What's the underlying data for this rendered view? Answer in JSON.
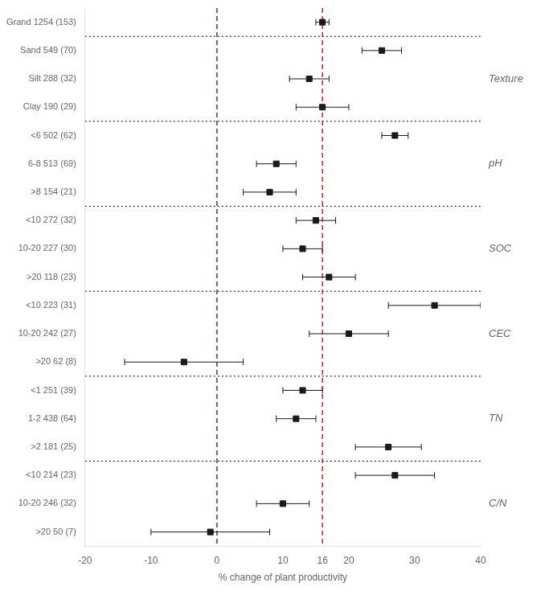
{
  "chart_data": {
    "type": "errorbar",
    "xlabel": "% change of plant productivity",
    "categories": [
      "Grand 1254 (153)",
      "Sand 549 (70)",
      "Silt 288 (32)",
      "Clay 190 (29)",
      "<6 502 (62)",
      "6-8 513 (69)",
      ">8 154 (21)",
      "<10 272 (32)",
      "10-20 227 (30)",
      ">20 118 (23)",
      "<10 223 (31)",
      "10-20 242 (27)",
      ">20 62 (8)",
      "<1 251 (39)",
      "1-2 438 (64)",
      ">2 181 (25)",
      "<10 214 (23)",
      "10-20 246 (32)",
      ">20 50 (7)"
    ],
    "values": [
      16,
      25,
      14,
      16,
      27,
      9,
      8,
      15,
      13,
      17,
      33,
      20,
      -5,
      13,
      12,
      26,
      27,
      10,
      -1
    ],
    "error_low": [
      1,
      3,
      3,
      4,
      2,
      3,
      4,
      3,
      3,
      4,
      7,
      6,
      9,
      3,
      3,
      5,
      6,
      4,
      9
    ],
    "error_high": [
      1,
      3,
      3,
      4,
      2,
      3,
      4,
      3,
      3,
      4,
      7,
      6,
      9,
      3,
      3,
      5,
      6,
      4,
      9
    ],
    "color": "#1a1a1a",
    "marker": "square",
    "xlim": [
      -20,
      40
    ],
    "xticks": [
      -20,
      -10,
      0,
      10,
      16,
      20,
      30,
      40
    ],
    "grid": false,
    "reference_lines": [
      {
        "value": 0,
        "color": "#3333bb",
        "line_style": "dashed"
      },
      {
        "value": 16,
        "color": "#cc2222",
        "line_style": "dashed"
      }
    ],
    "separators": {
      "after_indices": [
        0,
        3,
        6,
        9,
        12,
        15
      ],
      "color": "#000000",
      "line_style": "dotted"
    },
    "groups": [
      {
        "label": "Texture",
        "start": 1,
        "end": 3
      },
      {
        "label": "pH",
        "start": 4,
        "end": 6
      },
      {
        "label": "SOC",
        "start": 7,
        "end": 9
      },
      {
        "label": "CEC",
        "start": 10,
        "end": 12
      },
      {
        "label": "TN",
        "start": 13,
        "end": 15
      },
      {
        "label": "C/N",
        "start": 16,
        "end": 18
      }
    ]
  }
}
